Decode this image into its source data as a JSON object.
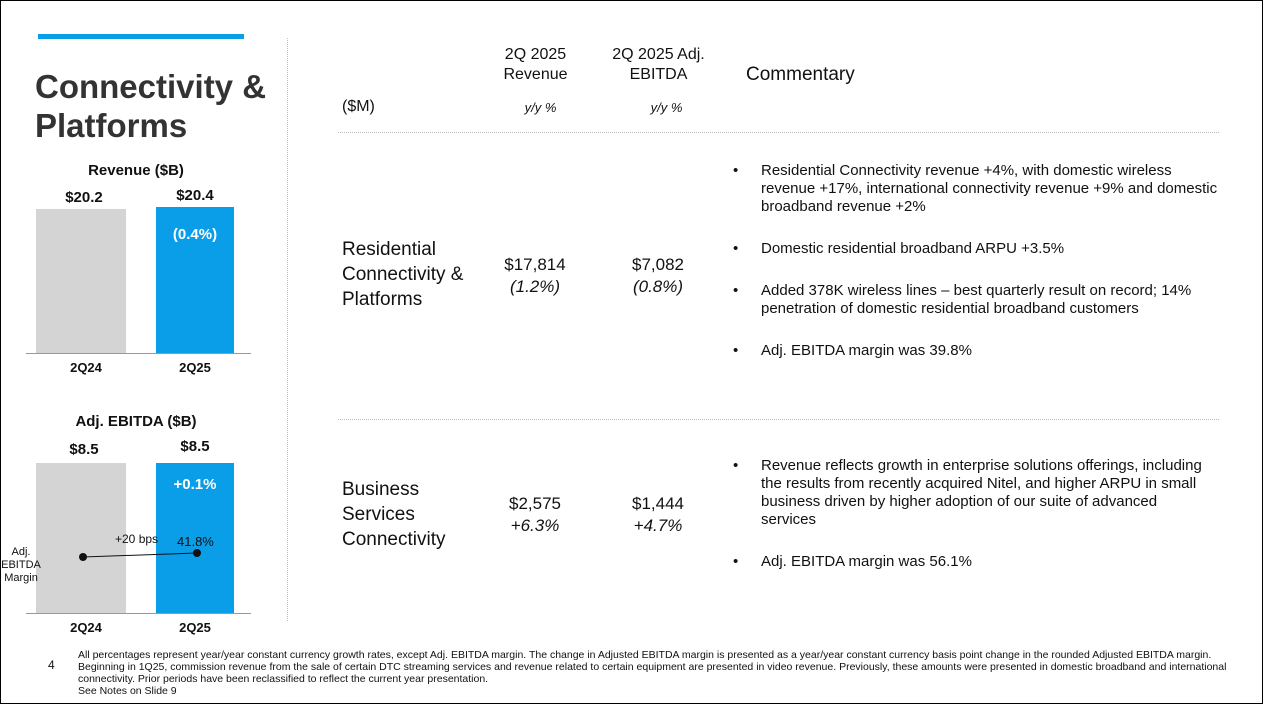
{
  "title": "Connectivity & Platforms",
  "revenue_chart": {
    "title": "Revenue ($B)",
    "bars": [
      {
        "period": "2Q24",
        "value": 20.2,
        "label": "$20.2"
      },
      {
        "period": "2Q25",
        "value": 20.4,
        "label": "$20.4",
        "change": "(0.4%)"
      }
    ]
  },
  "ebitda_chart": {
    "title": "Adj. EBITDA ($B)",
    "bars": [
      {
        "period": "2Q24",
        "value": 8.5,
        "label": "$8.5"
      },
      {
        "period": "2Q25",
        "value": 8.5,
        "label": "$8.5",
        "change": "+0.1%"
      }
    ],
    "margin_label": "Adj. EBITDA Margin",
    "margin_change": "+20 bps",
    "margin_2q25": "41.8%"
  },
  "table": {
    "units": "($M)",
    "col_revenue": "2Q 2025 Revenue",
    "col_revenue_sub": "y/y %",
    "col_ebitda": "2Q 2025 Adj. EBITDA",
    "col_ebitda_sub": "y/y %",
    "col_commentary": "Commentary",
    "rows": [
      {
        "segment": "Residential Connectivity & Platforms",
        "revenue": "$17,814",
        "revenue_pct": "(1.2%)",
        "ebitda": "$7,082",
        "ebitda_pct": "(0.8%)",
        "commentary": [
          "Residential Connectivity revenue +4%, with domestic wireless revenue +17%, international connectivity revenue +9% and domestic broadband revenue +2%",
          "Domestic residential broadband ARPU +3.5%",
          "Added 378K wireless lines – best quarterly result on record; 14% penetration of domestic residential broadband customers",
          "Adj. EBITDA margin was 39.8%"
        ]
      },
      {
        "segment": "Business Services Connectivity",
        "revenue": "$2,575",
        "revenue_pct": "+6.3%",
        "ebitda": "$1,444",
        "ebitda_pct": "+4.7%",
        "commentary": [
          "Revenue reflects growth in enterprise solutions offerings, including the results from recently acquired Nitel, and higher ARPU in small business driven by higher adoption of our suite of advanced services",
          "Adj. EBITDA margin was 56.1%"
        ]
      }
    ]
  },
  "page_number": "4",
  "footnote": "All percentages represent year/year constant currency growth rates, except Adj. EBITDA margin. The change in Adjusted EBITDA margin is presented as a year/year constant currency basis point change in the rounded Adjusted EBITDA margin. Beginning in 1Q25, commission revenue from the sale of certain DTC streaming services and revenue related to certain equipment are presented in video revenue. Previously, these amounts were presented in domestic broadband and international connectivity. Prior periods have been reclassified to reflect the current year presentation.",
  "footnote_see": "See Notes on Slide 9",
  "colors": {
    "accent": "#0a9ee8",
    "gray_bar": "#d4d4d4"
  }
}
